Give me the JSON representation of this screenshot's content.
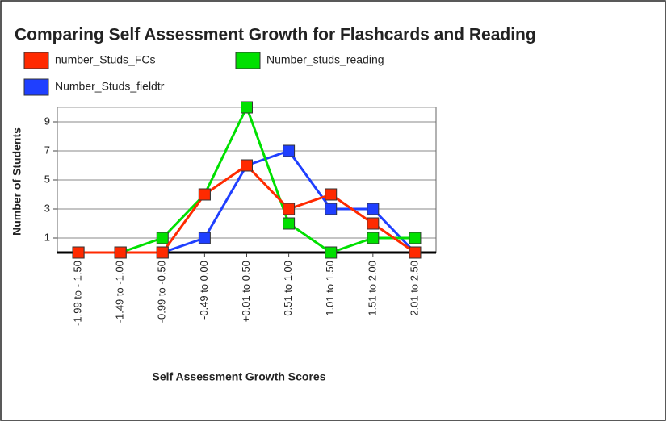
{
  "chart_data": {
    "type": "line",
    "title": "Comparing Self Assessment Growth for Flashcards and Reading",
    "x_label": "Self Assessment Growth Scores",
    "y_label": "Number of Students",
    "categories": [
      "-1.99 to - 1.50",
      "-1.49 to -1.00",
      "-0.99 to -0.50",
      "-0.49 to 0.00",
      "+0.01 to 0.50",
      "0.51 to 1.00",
      "1.01 to 1.50",
      "1.51 to 2.00",
      "2.01 to 2.50"
    ],
    "series": [
      {
        "name": "number_Studs_FCs",
        "color": "#ff2a00",
        "values": [
          0,
          0,
          0,
          4,
          6,
          3,
          4,
          2,
          0
        ]
      },
      {
        "name": "Number_studs_reading",
        "color": "#00e000",
        "values": [
          0,
          0,
          1,
          4,
          10,
          2,
          0,
          1,
          1
        ]
      },
      {
        "name": "Number_Studs_fieldtr",
        "color": "#1f3fff",
        "values": [
          0,
          0,
          0,
          1,
          6,
          7,
          3,
          3,
          0
        ]
      }
    ],
    "ylim": [
      0,
      10
    ],
    "yticks": [
      1,
      3,
      5,
      7,
      9
    ],
    "grid": true
  }
}
